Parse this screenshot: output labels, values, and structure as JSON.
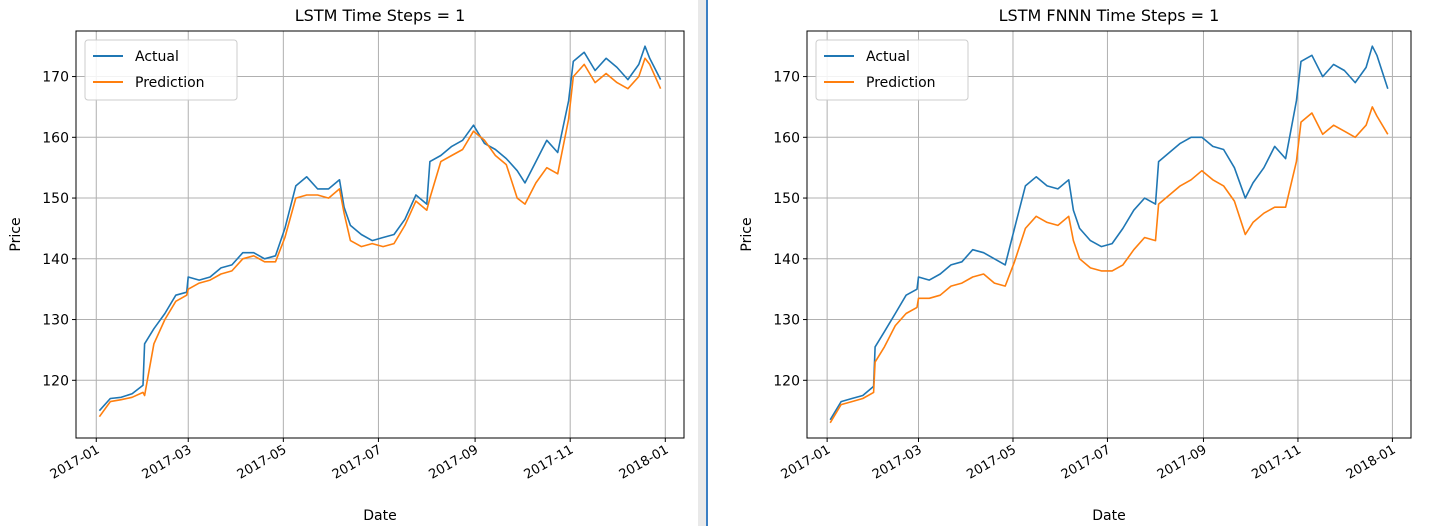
{
  "colors": {
    "actual": "#1f77b4",
    "prediction": "#ff7f0e",
    "grid": "#b0b0b0",
    "axes": "#000000",
    "divider_light": "#e6e6e6",
    "divider_accent": "#3b7fc4"
  },
  "chart_data": [
    {
      "type": "line",
      "title": "LSTM Time Steps = 1",
      "xlabel": "Date",
      "ylabel": "Price",
      "xlim": [
        "2016-12-19",
        "2018-01-13"
      ],
      "ylim": [
        110.5,
        177.5
      ],
      "xticks": [
        "2017-01",
        "2017-03",
        "2017-05",
        "2017-07",
        "2017-09",
        "2017-11",
        "2018-01"
      ],
      "yticks": [
        120,
        130,
        140,
        150,
        160,
        170
      ],
      "grid": true,
      "legend": "upper left",
      "series": [
        {
          "name": "Actual",
          "color": "#1f77b4",
          "points": [
            [
              "2017-01-03",
              115.0
            ],
            [
              "2017-01-10",
              117.0
            ],
            [
              "2017-01-17",
              117.2
            ],
            [
              "2017-01-24",
              117.8
            ],
            [
              "2017-01-31",
              119.2
            ],
            [
              "2017-02-01",
              126.0
            ],
            [
              "2017-02-07",
              128.5
            ],
            [
              "2017-02-14",
              131.0
            ],
            [
              "2017-02-21",
              134.0
            ],
            [
              "2017-02-28",
              134.5
            ],
            [
              "2017-03-01",
              137.0
            ],
            [
              "2017-03-08",
              136.5
            ],
            [
              "2017-03-15",
              137.0
            ],
            [
              "2017-03-22",
              138.5
            ],
            [
              "2017-03-29",
              139.0
            ],
            [
              "2017-04-05",
              141.0
            ],
            [
              "2017-04-12",
              141.0
            ],
            [
              "2017-04-19",
              140.0
            ],
            [
              "2017-04-26",
              140.5
            ],
            [
              "2017-05-02",
              145.0
            ],
            [
              "2017-05-09",
              152.0
            ],
            [
              "2017-05-16",
              153.5
            ],
            [
              "2017-05-23",
              151.5
            ],
            [
              "2017-05-30",
              151.5
            ],
            [
              "2017-06-06",
              153.0
            ],
            [
              "2017-06-09",
              148.5
            ],
            [
              "2017-06-13",
              145.5
            ],
            [
              "2017-06-20",
              144.0
            ],
            [
              "2017-06-27",
              143.0
            ],
            [
              "2017-07-04",
              143.5
            ],
            [
              "2017-07-11",
              144.0
            ],
            [
              "2017-07-18",
              146.5
            ],
            [
              "2017-07-25",
              150.5
            ],
            [
              "2017-08-01",
              149.0
            ],
            [
              "2017-08-03",
              156.0
            ],
            [
              "2017-08-10",
              157.0
            ],
            [
              "2017-08-17",
              158.5
            ],
            [
              "2017-08-24",
              159.5
            ],
            [
              "2017-08-31",
              162.0
            ],
            [
              "2017-09-07",
              159.0
            ],
            [
              "2017-09-14",
              158.0
            ],
            [
              "2017-09-21",
              156.5
            ],
            [
              "2017-09-28",
              154.5
            ],
            [
              "2017-10-03",
              152.5
            ],
            [
              "2017-10-10",
              156.0
            ],
            [
              "2017-10-17",
              159.5
            ],
            [
              "2017-10-24",
              157.5
            ],
            [
              "2017-10-31",
              166.0
            ],
            [
              "2017-11-03",
              172.5
            ],
            [
              "2017-11-10",
              174.0
            ],
            [
              "2017-11-17",
              171.0
            ],
            [
              "2017-11-24",
              173.0
            ],
            [
              "2017-12-01",
              171.5
            ],
            [
              "2017-12-08",
              169.5
            ],
            [
              "2017-12-15",
              172.0
            ],
            [
              "2017-12-19",
              175.0
            ],
            [
              "2017-12-22",
              173.0
            ],
            [
              "2017-12-29",
              169.5
            ]
          ]
        },
        {
          "name": "Prediction",
          "color": "#ff7f0e",
          "points": [
            [
              "2017-01-03",
              114.0
            ],
            [
              "2017-01-10",
              116.5
            ],
            [
              "2017-01-17",
              116.8
            ],
            [
              "2017-01-24",
              117.2
            ],
            [
              "2017-01-31",
              118.0
            ],
            [
              "2017-02-01",
              117.5
            ],
            [
              "2017-02-07",
              126.0
            ],
            [
              "2017-02-14",
              130.0
            ],
            [
              "2017-02-21",
              133.0
            ],
            [
              "2017-02-28",
              134.0
            ],
            [
              "2017-03-01",
              135.0
            ],
            [
              "2017-03-08",
              136.0
            ],
            [
              "2017-03-15",
              136.5
            ],
            [
              "2017-03-22",
              137.5
            ],
            [
              "2017-03-29",
              138.0
            ],
            [
              "2017-04-05",
              140.0
            ],
            [
              "2017-04-12",
              140.5
            ],
            [
              "2017-04-19",
              139.5
            ],
            [
              "2017-04-26",
              139.5
            ],
            [
              "2017-05-02",
              143.5
            ],
            [
              "2017-05-09",
              150.0
            ],
            [
              "2017-05-16",
              150.5
            ],
            [
              "2017-05-23",
              150.5
            ],
            [
              "2017-05-30",
              150.0
            ],
            [
              "2017-06-06",
              151.5
            ],
            [
              "2017-06-09",
              147.5
            ],
            [
              "2017-06-13",
              143.0
            ],
            [
              "2017-06-20",
              142.0
            ],
            [
              "2017-06-27",
              142.5
            ],
            [
              "2017-07-04",
              142.0
            ],
            [
              "2017-07-11",
              142.5
            ],
            [
              "2017-07-18",
              145.5
            ],
            [
              "2017-07-25",
              149.5
            ],
            [
              "2017-08-01",
              148.0
            ],
            [
              "2017-08-03",
              150.0
            ],
            [
              "2017-08-10",
              156.0
            ],
            [
              "2017-08-17",
              157.0
            ],
            [
              "2017-08-24",
              158.0
            ],
            [
              "2017-08-31",
              161.0
            ],
            [
              "2017-09-07",
              159.5
            ],
            [
              "2017-09-14",
              157.0
            ],
            [
              "2017-09-21",
              155.5
            ],
            [
              "2017-09-28",
              150.0
            ],
            [
              "2017-10-03",
              149.0
            ],
            [
              "2017-10-10",
              152.5
            ],
            [
              "2017-10-17",
              155.0
            ],
            [
              "2017-10-24",
              154.0
            ],
            [
              "2017-10-31",
              163.0
            ],
            [
              "2017-11-03",
              170.0
            ],
            [
              "2017-11-10",
              172.0
            ],
            [
              "2017-11-17",
              169.0
            ],
            [
              "2017-11-24",
              170.5
            ],
            [
              "2017-12-01",
              169.0
            ],
            [
              "2017-12-08",
              168.0
            ],
            [
              "2017-12-15",
              170.0
            ],
            [
              "2017-12-19",
              173.0
            ],
            [
              "2017-12-22",
              172.0
            ],
            [
              "2017-12-29",
              168.0
            ]
          ]
        }
      ]
    },
    {
      "type": "line",
      "title": "LSTM FNNN Time Steps = 1",
      "xlabel": "Date",
      "ylabel": "Price",
      "xlim": [
        "2016-12-19",
        "2018-01-13"
      ],
      "ylim": [
        110.5,
        177.5
      ],
      "xticks": [
        "2017-01",
        "2017-03",
        "2017-05",
        "2017-07",
        "2017-09",
        "2017-11",
        "2018-01"
      ],
      "yticks": [
        120,
        130,
        140,
        150,
        160,
        170
      ],
      "grid": true,
      "legend": "upper left",
      "series": [
        {
          "name": "Actual",
          "color": "#1f77b4",
          "points": [
            [
              "2017-01-03",
              113.5
            ],
            [
              "2017-01-10",
              116.5
            ],
            [
              "2017-01-17",
              117.0
            ],
            [
              "2017-01-24",
              117.5
            ],
            [
              "2017-01-31",
              119.0
            ],
            [
              "2017-02-01",
              125.5
            ],
            [
              "2017-02-07",
              128.0
            ],
            [
              "2017-02-14",
              131.0
            ],
            [
              "2017-02-21",
              134.0
            ],
            [
              "2017-02-28",
              135.0
            ],
            [
              "2017-03-01",
              137.0
            ],
            [
              "2017-03-08",
              136.5
            ],
            [
              "2017-03-15",
              137.5
            ],
            [
              "2017-03-22",
              139.0
            ],
            [
              "2017-03-29",
              139.5
            ],
            [
              "2017-04-05",
              141.5
            ],
            [
              "2017-04-12",
              141.0
            ],
            [
              "2017-04-19",
              140.0
            ],
            [
              "2017-04-26",
              139.0
            ],
            [
              "2017-05-02",
              145.0
            ],
            [
              "2017-05-09",
              152.0
            ],
            [
              "2017-05-16",
              153.5
            ],
            [
              "2017-05-23",
              152.0
            ],
            [
              "2017-05-30",
              151.5
            ],
            [
              "2017-06-06",
              153.0
            ],
            [
              "2017-06-09",
              148.0
            ],
            [
              "2017-06-13",
              145.0
            ],
            [
              "2017-06-20",
              143.0
            ],
            [
              "2017-06-27",
              142.0
            ],
            [
              "2017-07-04",
              142.5
            ],
            [
              "2017-07-11",
              145.0
            ],
            [
              "2017-07-18",
              148.0
            ],
            [
              "2017-07-25",
              150.0
            ],
            [
              "2017-08-01",
              149.0
            ],
            [
              "2017-08-03",
              156.0
            ],
            [
              "2017-08-10",
              157.5
            ],
            [
              "2017-08-17",
              159.0
            ],
            [
              "2017-08-24",
              160.0
            ],
            [
              "2017-08-31",
              160.0
            ],
            [
              "2017-09-07",
              158.5
            ],
            [
              "2017-09-14",
              158.0
            ],
            [
              "2017-09-21",
              155.0
            ],
            [
              "2017-09-28",
              150.0
            ],
            [
              "2017-10-03",
              152.5
            ],
            [
              "2017-10-10",
              155.0
            ],
            [
              "2017-10-17",
              158.5
            ],
            [
              "2017-10-24",
              156.5
            ],
            [
              "2017-10-31",
              166.0
            ],
            [
              "2017-11-03",
              172.5
            ],
            [
              "2017-11-10",
              173.5
            ],
            [
              "2017-11-17",
              170.0
            ],
            [
              "2017-11-24",
              172.0
            ],
            [
              "2017-12-01",
              171.0
            ],
            [
              "2017-12-08",
              169.0
            ],
            [
              "2017-12-15",
              171.5
            ],
            [
              "2017-12-19",
              175.0
            ],
            [
              "2017-12-22",
              173.5
            ],
            [
              "2017-12-29",
              168.0
            ]
          ]
        },
        {
          "name": "Prediction",
          "color": "#ff7f0e",
          "points": [
            [
              "2017-01-03",
              113.0
            ],
            [
              "2017-01-10",
              116.0
            ],
            [
              "2017-01-17",
              116.5
            ],
            [
              "2017-01-24",
              117.0
            ],
            [
              "2017-01-31",
              118.0
            ],
            [
              "2017-02-01",
              123.0
            ],
            [
              "2017-02-07",
              125.5
            ],
            [
              "2017-02-14",
              129.0
            ],
            [
              "2017-02-21",
              131.0
            ],
            [
              "2017-02-28",
              132.0
            ],
            [
              "2017-03-01",
              133.5
            ],
            [
              "2017-03-08",
              133.5
            ],
            [
              "2017-03-15",
              134.0
            ],
            [
              "2017-03-22",
              135.5
            ],
            [
              "2017-03-29",
              136.0
            ],
            [
              "2017-04-05",
              137.0
            ],
            [
              "2017-04-12",
              137.5
            ],
            [
              "2017-04-19",
              136.0
            ],
            [
              "2017-04-26",
              135.5
            ],
            [
              "2017-05-02",
              139.5
            ],
            [
              "2017-05-09",
              145.0
            ],
            [
              "2017-05-16",
              147.0
            ],
            [
              "2017-05-23",
              146.0
            ],
            [
              "2017-05-30",
              145.5
            ],
            [
              "2017-06-06",
              147.0
            ],
            [
              "2017-06-09",
              143.0
            ],
            [
              "2017-06-13",
              140.0
            ],
            [
              "2017-06-20",
              138.5
            ],
            [
              "2017-06-27",
              138.0
            ],
            [
              "2017-07-04",
              138.0
            ],
            [
              "2017-07-11",
              139.0
            ],
            [
              "2017-07-18",
              141.5
            ],
            [
              "2017-07-25",
              143.5
            ],
            [
              "2017-08-01",
              143.0
            ],
            [
              "2017-08-03",
              149.0
            ],
            [
              "2017-08-10",
              150.5
            ],
            [
              "2017-08-17",
              152.0
            ],
            [
              "2017-08-24",
              153.0
            ],
            [
              "2017-08-31",
              154.5
            ],
            [
              "2017-09-07",
              153.0
            ],
            [
              "2017-09-14",
              152.0
            ],
            [
              "2017-09-21",
              149.5
            ],
            [
              "2017-09-28",
              144.0
            ],
            [
              "2017-10-03",
              146.0
            ],
            [
              "2017-10-10",
              147.5
            ],
            [
              "2017-10-17",
              148.5
            ],
            [
              "2017-10-24",
              148.5
            ],
            [
              "2017-10-31",
              156.0
            ],
            [
              "2017-11-03",
              162.5
            ],
            [
              "2017-11-10",
              164.0
            ],
            [
              "2017-11-17",
              160.5
            ],
            [
              "2017-11-24",
              162.0
            ],
            [
              "2017-12-01",
              161.0
            ],
            [
              "2017-12-08",
              160.0
            ],
            [
              "2017-12-15",
              162.0
            ],
            [
              "2017-12-19",
              165.0
            ],
            [
              "2017-12-22",
              163.5
            ],
            [
              "2017-12-29",
              160.5
            ]
          ]
        }
      ]
    }
  ]
}
